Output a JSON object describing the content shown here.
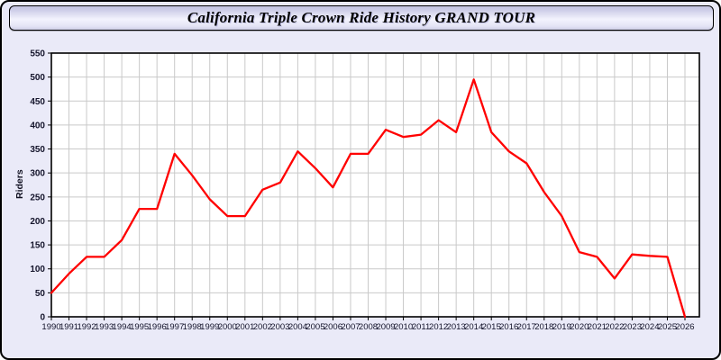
{
  "title": "California Triple Crown Ride History GRAND TOUR",
  "colors": {
    "panel_bg": "#eaeaf8",
    "plot_bg": "#ffffff",
    "grid": "#c9c9c9",
    "axis": "#000000",
    "line": "#ff0000",
    "tick_label": "#14142b"
  },
  "chart_data": {
    "type": "line",
    "title": "California Triple Crown Ride History GRAND TOUR",
    "xlabel": "",
    "ylabel": "Riders",
    "ylim": [
      0,
      550
    ],
    "ytick_step": 50,
    "grid": true,
    "legend": false,
    "x": [
      1990,
      1991,
      1992,
      1993,
      1994,
      1995,
      1996,
      1997,
      1998,
      1999,
      2000,
      2001,
      2002,
      2003,
      2004,
      2005,
      2006,
      2007,
      2008,
      2009,
      2010,
      2011,
      2012,
      2013,
      2014,
      2015,
      2016,
      2017,
      2018,
      2019,
      2020,
      2021,
      2022,
      2023,
      2024,
      2025,
      2026
    ],
    "series": [
      {
        "name": "Riders",
        "color": "#ff0000",
        "values": [
          50,
          90,
          125,
          125,
          160,
          225,
          225,
          340,
          295,
          245,
          210,
          210,
          265,
          280,
          345,
          310,
          270,
          340,
          340,
          390,
          375,
          380,
          410,
          385,
          495,
          385,
          345,
          320,
          260,
          210,
          135,
          125,
          80,
          130,
          127,
          125,
          0
        ]
      }
    ]
  }
}
